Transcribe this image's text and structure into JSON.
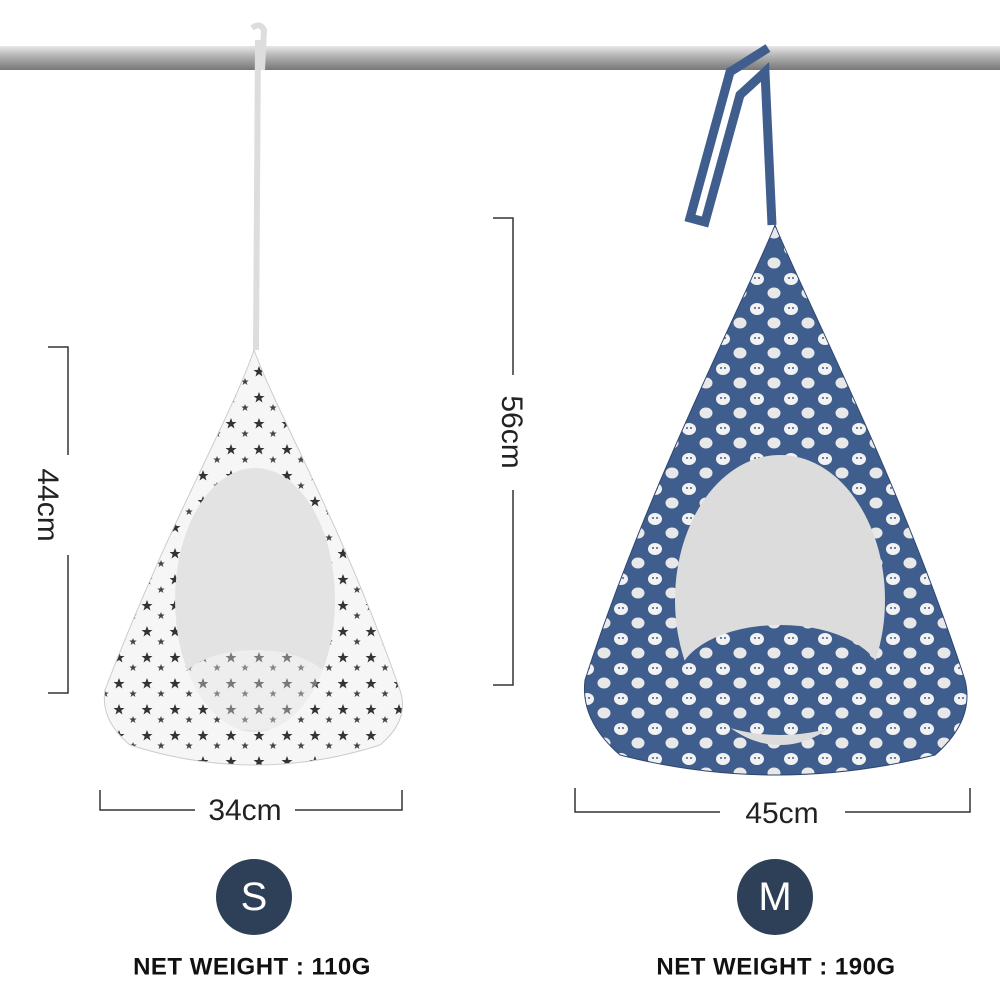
{
  "products": [
    {
      "height": "44cm",
      "width": "34cm",
      "size": "S",
      "weight": "NET WEIGHT : 110G"
    },
    {
      "height": "56cm",
      "width": "45cm",
      "size": "M",
      "weight": "NET WEIGHT : 190G"
    }
  ]
}
